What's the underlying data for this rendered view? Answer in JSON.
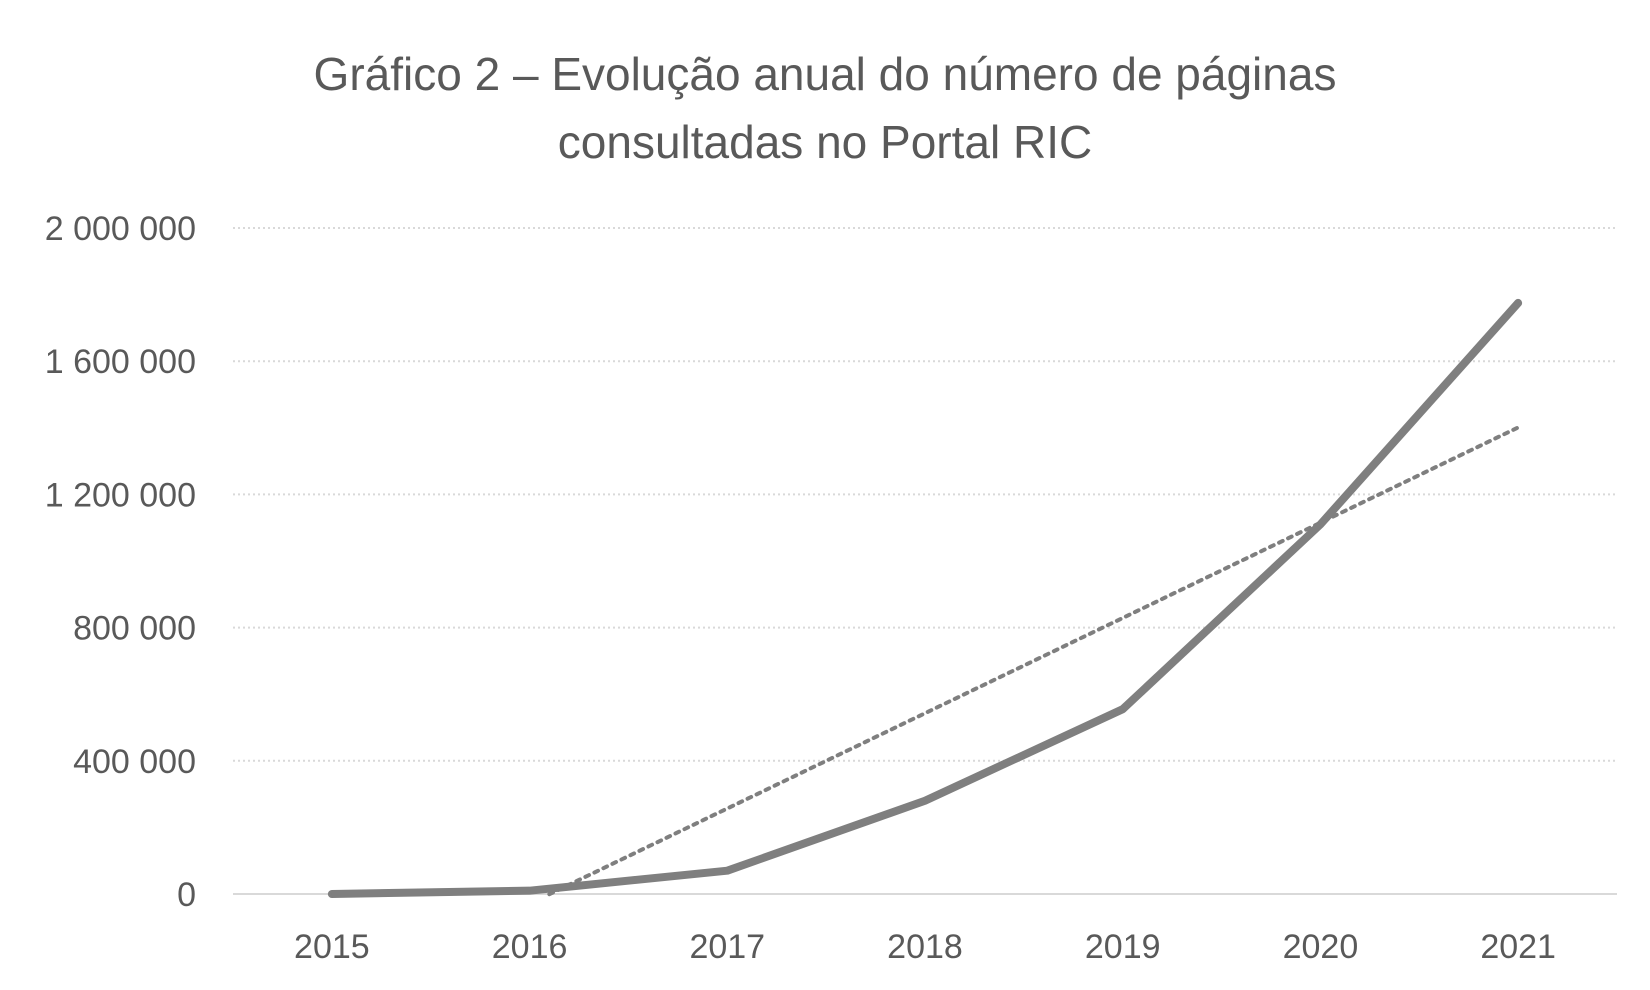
{
  "chart_data": {
    "type": "line",
    "title_lines": [
      "Gráfico 2 – Evolução anual do número de páginas",
      "consultadas no Portal RIC"
    ],
    "xlabel": "",
    "ylabel": "",
    "x": [
      "2015",
      "2016",
      "2017",
      "2018",
      "2019",
      "2020",
      "2021"
    ],
    "series": [
      {
        "values": [
          0,
          10000,
          70000,
          280000,
          555000,
          1110000,
          1775000
        ],
        "color": "#7f7f7f",
        "style": "solid"
      }
    ],
    "trendline": {
      "type": "linear",
      "color": "#7f7f7f",
      "style": "dotted",
      "start_index": 1.1,
      "end_index": 6
    },
    "ylim": [
      0,
      2000000
    ],
    "y_ticks": [
      0,
      400000,
      800000,
      1200000,
      1600000,
      2000000
    ],
    "y_tick_labels": [
      "0",
      "400 000",
      "800 000",
      "1 200 000",
      "1 600 000",
      "2 000 000"
    ],
    "grid": true,
    "grid_color": "#d9d9d9",
    "axis_color": "#d9d9d9",
    "text_color": "#595959"
  }
}
